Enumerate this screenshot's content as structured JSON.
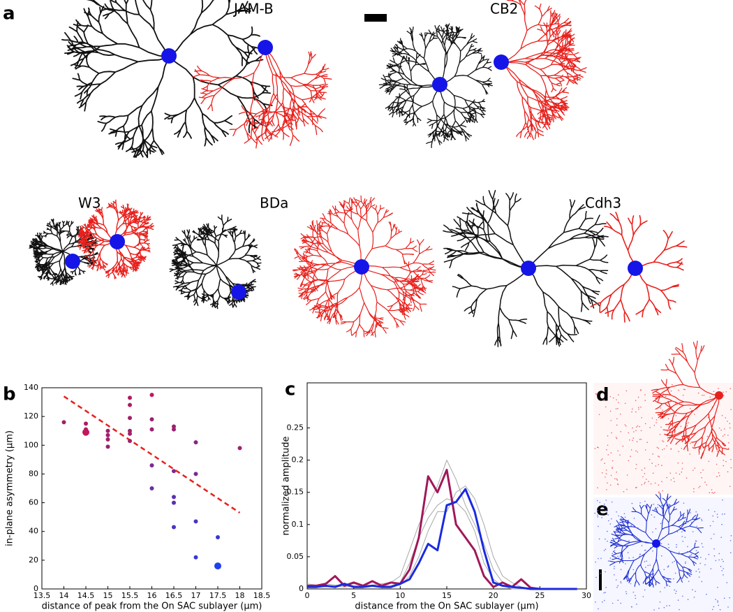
{
  "panel_a": {
    "label": "a",
    "neurons": [
      "JAM-B",
      "CB2",
      "W3",
      "BDa",
      "Cdh3"
    ]
  },
  "panel_d": {
    "label": "d"
  },
  "panel_e": {
    "label": "e"
  },
  "chart_data": [
    {
      "type": "scatter",
      "panel": "b",
      "xlabel": "distance of peak from the On SAC sublayer (μm)",
      "ylabel": "in-plane asymmetry (μm)",
      "xlim": [
        13.5,
        18.5
      ],
      "xticks": [
        13.5,
        14,
        14.5,
        15,
        15.5,
        16,
        16.5,
        17,
        17.5,
        18,
        18.5
      ],
      "ylim": [
        0,
        140
      ],
      "yticks": [
        0,
        20,
        40,
        60,
        80,
        100,
        120,
        140
      ],
      "points": {
        "x": [
          14,
          14.5,
          14.5,
          14.5,
          14.5,
          15,
          15,
          15,
          15,
          15.5,
          15.5,
          15.5,
          15.5,
          15.5,
          15.5,
          16,
          16,
          16,
          16,
          16,
          16.5,
          16.5,
          16.5,
          16.5,
          16.5,
          16.5,
          17,
          17,
          17,
          17,
          17.5,
          17.5,
          18
        ],
        "y": [
          116,
          115,
          111,
          110,
          109,
          110,
          107,
          104,
          99,
          133,
          128,
          119,
          110,
          108,
          103,
          135,
          118,
          111,
          86,
          70,
          113,
          111,
          82,
          64,
          60,
          43,
          102,
          80,
          47,
          22,
          36,
          16,
          98
        ],
        "sizes": [
          3,
          3,
          3,
          3,
          5,
          3,
          3,
          3,
          3,
          3,
          3,
          3,
          3,
          3,
          3,
          3,
          3,
          3,
          3,
          3,
          3,
          3,
          3,
          3,
          3,
          3,
          3,
          3,
          3,
          3,
          3,
          5,
          3
        ],
        "colors": [
          "#a0206a",
          "#b01a60",
          "#b01a60",
          "#b01a60",
          "#c0185a",
          "#a0206a",
          "#a0206a",
          "#a0206a",
          "#9a2270",
          "#b01a60",
          "#b01a60",
          "#a0206a",
          "#a0206a",
          "#a0206a",
          "#a0206a",
          "#c0185a",
          "#9a2270",
          "#9a2270",
          "#7a2a90",
          "#6a2ea0",
          "#9a2270",
          "#9a2270",
          "#7a2a90",
          "#5a30b0",
          "#5a30b0",
          "#4a34c0",
          "#8a2680",
          "#7a2a90",
          "#4a34c0",
          "#3a38d0",
          "#3a38d0",
          "#2040f0",
          "#a0206a"
        ]
      },
      "fit": {
        "x": [
          14,
          18
        ],
        "y": [
          134,
          53
        ],
        "color": "#e8201c",
        "dashed": true
      }
    },
    {
      "type": "line",
      "panel": "c",
      "xlabel": "distance from the On SAC sublayer (μm)",
      "ylabel": "normalized amplitude",
      "xlim": [
        0,
        30
      ],
      "xticks": [
        0,
        5,
        10,
        15,
        20,
        25,
        30
      ],
      "ylim": [
        0,
        0.32
      ],
      "yticks": [
        0,
        0.05,
        0.1,
        0.15,
        0.2,
        0.25
      ],
      "x": [
        0,
        1,
        2,
        3,
        4,
        5,
        6,
        7,
        8,
        9,
        10,
        11,
        12,
        13,
        14,
        15,
        16,
        17,
        18,
        19,
        20,
        21,
        22,
        23,
        24,
        25,
        26,
        27,
        28,
        29
      ],
      "series": [
        {
          "color": "#a8a8a8",
          "width": 1,
          "values": [
            0.005,
            0.005,
            0.005,
            0.005,
            0.005,
            0.005,
            0.005,
            0.005,
            0.005,
            0.005,
            0.01,
            0.04,
            0.08,
            0.11,
            0.13,
            0.14,
            0.135,
            0.12,
            0.09,
            0.04,
            0.015,
            0.005,
            0,
            0,
            0,
            0,
            0,
            0,
            0,
            0
          ]
        },
        {
          "color": "#a8a8a8",
          "width": 1,
          "values": [
            0.008,
            0.006,
            0.008,
            0.006,
            0.006,
            0.008,
            0.006,
            0.006,
            0.008,
            0.01,
            0.02,
            0.06,
            0.1,
            0.13,
            0.16,
            0.2,
            0.17,
            0.13,
            0.1,
            0.07,
            0.03,
            0.01,
            0.005,
            0,
            0,
            0,
            0,
            0,
            0,
            0
          ]
        },
        {
          "color": "#a8a8a8",
          "width": 1,
          "values": [
            0.003,
            0.004,
            0.003,
            0.004,
            0.003,
            0.004,
            0.003,
            0.004,
            0.003,
            0.004,
            0.006,
            0.02,
            0.05,
            0.09,
            0.12,
            0.12,
            0.15,
            0.16,
            0.14,
            0.1,
            0.05,
            0.02,
            0.01,
            0.003,
            0,
            0,
            0,
            0,
            0,
            0
          ]
        },
        {
          "color": "#a0185a",
          "width": 3,
          "values": [
            0.005,
            0.005,
            0.008,
            0.02,
            0.005,
            0.01,
            0.005,
            0.012,
            0.005,
            0.01,
            0.008,
            0.03,
            0.08,
            0.175,
            0.15,
            0.185,
            0.1,
            0.08,
            0.06,
            0.02,
            0.003,
            0.01,
            0.003,
            0.015,
            0.002,
            0,
            0,
            0,
            0,
            0
          ]
        },
        {
          "color": "#1a2ae0",
          "width": 3,
          "values": [
            0.003,
            0.003,
            0.005,
            0.003,
            0.008,
            0.003,
            0.003,
            0.005,
            0.003,
            0.003,
            0.008,
            0.015,
            0.04,
            0.07,
            0.06,
            0.13,
            0.135,
            0.155,
            0.12,
            0.06,
            0.01,
            0.005,
            0.003,
            0.002,
            0,
            0,
            0,
            0,
            0,
            0
          ]
        }
      ]
    }
  ]
}
